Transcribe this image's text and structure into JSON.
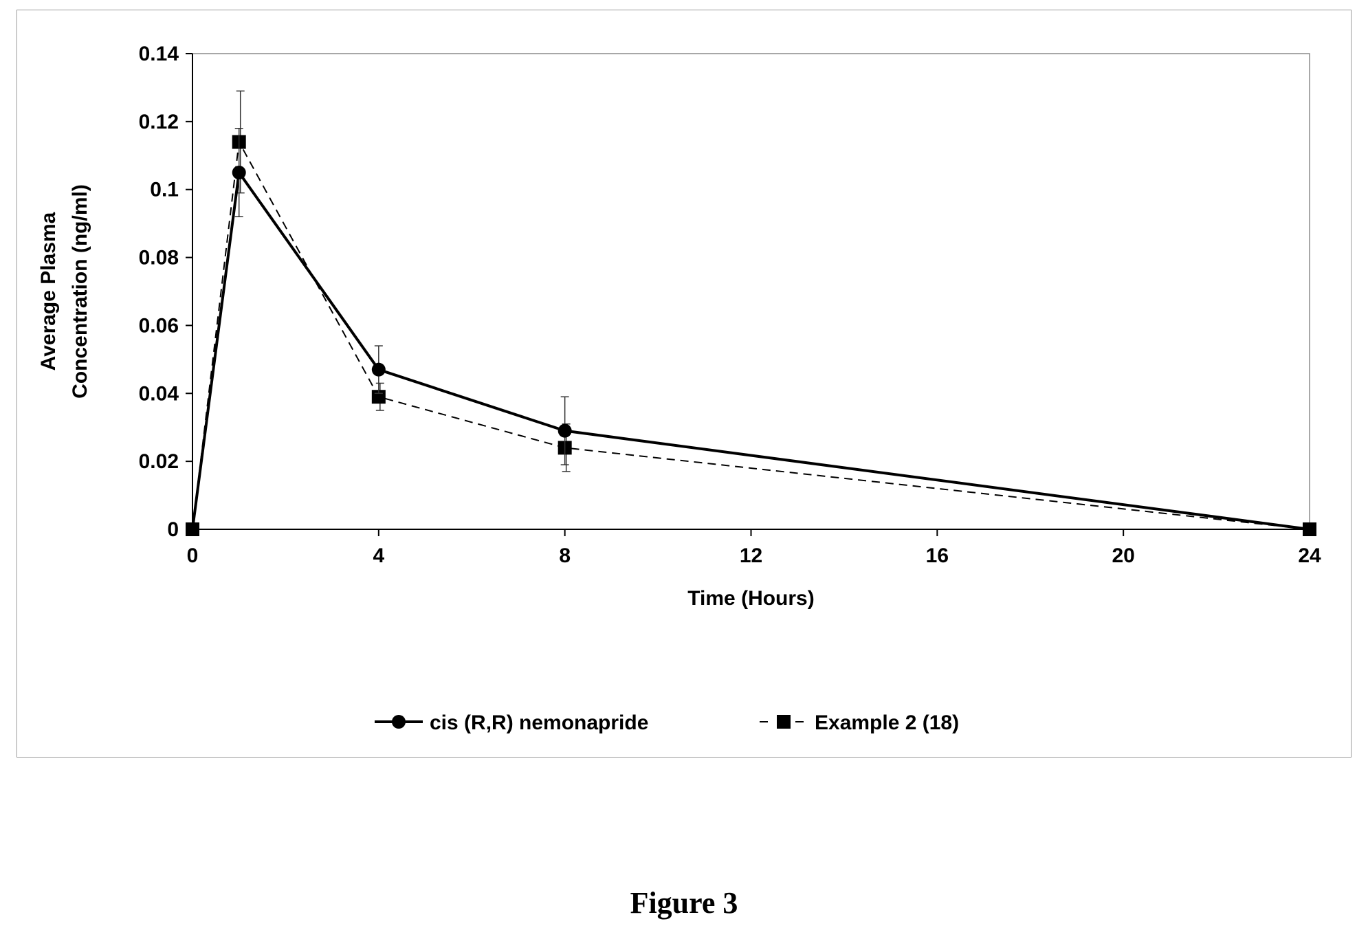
{
  "caption": "Figure 3",
  "chart_data": {
    "type": "line",
    "title": "",
    "xlabel": "Time (Hours)",
    "ylabel_lines": [
      "Average Plasma",
      "Concentration (ng/ml)"
    ],
    "xlim": [
      0,
      24
    ],
    "ylim": [
      0,
      0.14
    ],
    "x_ticks": [
      0,
      4,
      8,
      12,
      16,
      20,
      24
    ],
    "x_tick_labels": [
      "0",
      "4",
      "8",
      "12",
      "16",
      "20",
      "24"
    ],
    "y_ticks": [
      0,
      0.02,
      0.04,
      0.06,
      0.08,
      0.1,
      0.12,
      0.14
    ],
    "y_tick_labels": [
      "0",
      "0.02",
      "0.04",
      "0.06",
      "0.08",
      "0.1",
      "0.12",
      "0.14"
    ],
    "grid": false,
    "legend_position": "bottom",
    "series": [
      {
        "name": "cis (R,R) nemonapride",
        "style": "solid",
        "marker": "circle",
        "color": "#000000",
        "x": [
          0,
          1,
          4,
          8,
          24
        ],
        "y": [
          0,
          0.105,
          0.047,
          0.029,
          0
        ],
        "error": [
          0,
          0.013,
          0.007,
          0.01,
          0
        ]
      },
      {
        "name": "Example 2 (18)",
        "style": "dashed",
        "marker": "square",
        "color": "#000000",
        "x": [
          0,
          1,
          4,
          8,
          24
        ],
        "y": [
          0,
          0.114,
          0.039,
          0.024,
          0
        ],
        "error": [
          0,
          0.015,
          0.004,
          0.007,
          0
        ]
      }
    ]
  }
}
